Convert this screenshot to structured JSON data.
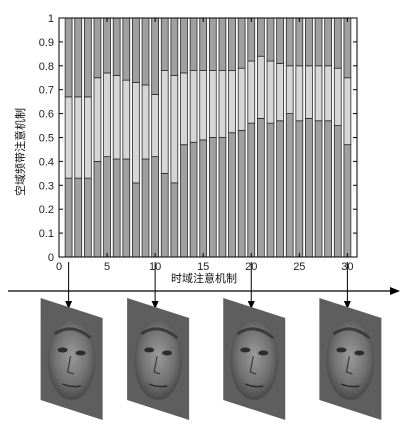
{
  "chart_data": {
    "type": "bar",
    "xlabel": "时域注意机制",
    "ylabel": "空域频带注意机制",
    "x": [
      1,
      2,
      3,
      4,
      5,
      6,
      7,
      8,
      9,
      10,
      11,
      12,
      13,
      14,
      15,
      16,
      17,
      18,
      19,
      20,
      21,
      22,
      23,
      24,
      25,
      26,
      27,
      28,
      29,
      30
    ],
    "series": [
      {
        "values": [
          0.33,
          0.33,
          0.33,
          0.4,
          0.42,
          0.41,
          0.41,
          0.31,
          0.41,
          0.42,
          0.35,
          0.31,
          0.47,
          0.48,
          0.49,
          0.5,
          0.5,
          0.52,
          0.53,
          0.56,
          0.58,
          0.56,
          0.57,
          0.6,
          0.57,
          0.58,
          0.57,
          0.57,
          0.55,
          0.47
        ]
      },
      {
        "values": [
          0.34,
          0.34,
          0.34,
          0.35,
          0.35,
          0.35,
          0.33,
          0.42,
          0.31,
          0.26,
          0.43,
          0.45,
          0.3,
          0.3,
          0.29,
          0.28,
          0.28,
          0.26,
          0.26,
          0.26,
          0.26,
          0.26,
          0.24,
          0.2,
          0.23,
          0.22,
          0.23,
          0.23,
          0.24,
          0.28
        ]
      },
      {
        "values": [
          0.33,
          0.33,
          0.33,
          0.25,
          0.23,
          0.24,
          0.26,
          0.27,
          0.28,
          0.32,
          0.22,
          0.24,
          0.23,
          0.22,
          0.22,
          0.22,
          0.22,
          0.22,
          0.21,
          0.18,
          0.16,
          0.18,
          0.19,
          0.2,
          0.2,
          0.2,
          0.2,
          0.2,
          0.21,
          0.25
        ]
      }
    ],
    "ylim": [
      0,
      1
    ],
    "xlim": [
      0,
      31
    ],
    "xticks": [
      0,
      5,
      10,
      15,
      20,
      25,
      30
    ],
    "yticks": [
      0,
      0.1,
      0.2,
      0.3,
      0.4,
      0.5,
      0.6,
      0.7,
      0.8,
      0.9,
      1
    ],
    "grid": false,
    "frame_markers": [
      1,
      10,
      20,
      30
    ],
    "colors": {
      "bottom": "#a0a0a0",
      "middle": "#d6d6d6",
      "top": "#a0a0a0",
      "edge": "#2a2a2a",
      "axis": "#000000"
    }
  },
  "faces": [
    {
      "icon": "face-frame-1"
    },
    {
      "icon": "face-frame-10"
    },
    {
      "icon": "face-frame-20"
    },
    {
      "icon": "face-frame-30"
    }
  ]
}
